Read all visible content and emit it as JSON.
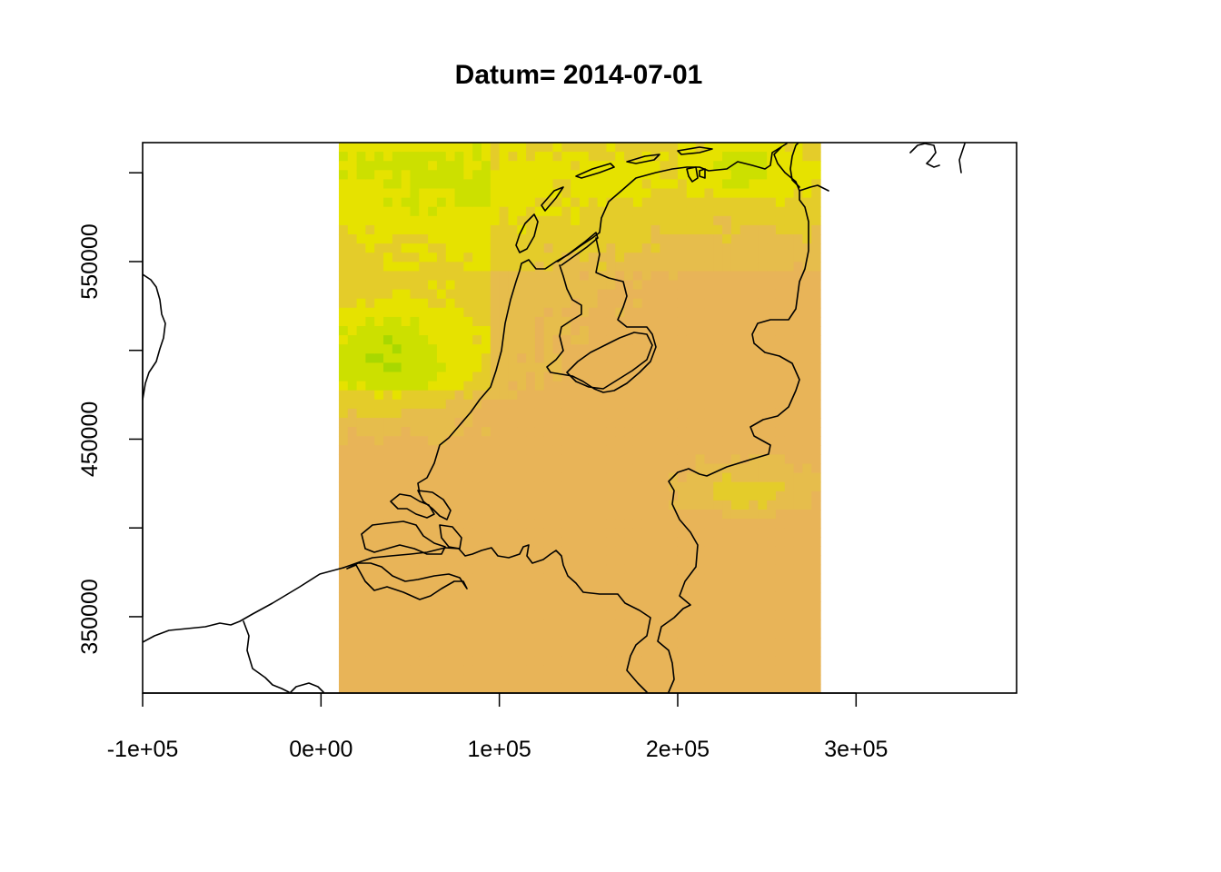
{
  "title": "Datum= 2014-07-01",
  "chart_data": {
    "type": "heatmap",
    "title": "Datum= 2014-07-01",
    "xlim": [
      -100000,
      390000
    ],
    "ylim": [
      307000,
      617000
    ],
    "x_ticks": [
      {
        "value": -100000,
        "label": "-1e+05"
      },
      {
        "value": 0,
        "label": "0e+00"
      },
      {
        "value": 100000,
        "label": "1e+05"
      },
      {
        "value": 200000,
        "label": "2e+05"
      },
      {
        "value": 300000,
        "label": "3e+05"
      }
    ],
    "y_ticks": [
      {
        "value": 350000,
        "label": "350000"
      },
      {
        "value": 400000,
        "label": ""
      },
      {
        "value": 450000,
        "label": "450000"
      },
      {
        "value": 500000,
        "label": ""
      },
      {
        "value": 550000,
        "label": "550000"
      },
      {
        "value": 600000,
        "label": ""
      }
    ],
    "raster_extent": {
      "xmin": 10000,
      "xmax": 280000,
      "ymin": 307000,
      "ymax": 617000
    },
    "palette": [
      "#E8B458",
      "#E6BD4C",
      "#E4CC2A",
      "#E6E200",
      "#CCE000",
      "#A8D800"
    ],
    "overlay": "country borders (Netherlands, Belgium, Germany)"
  }
}
